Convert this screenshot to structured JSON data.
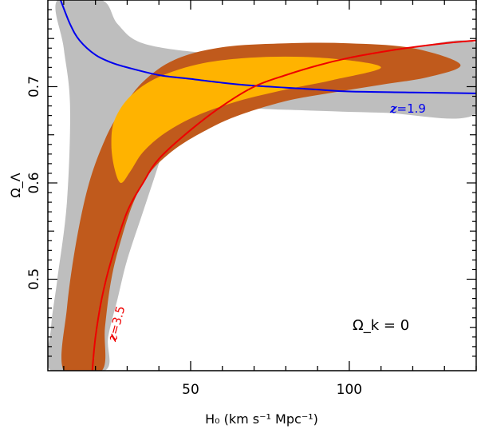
{
  "chart_data": {
    "type": "contour",
    "xlabel": "H₀ (km s⁻¹ Mpc⁻¹)",
    "ylabel": "Ω_Λ",
    "xlim": [
      5,
      140
    ],
    "ylim": [
      0.405,
      0.79
    ],
    "x_ticks": [
      50,
      100
    ],
    "y_ticks": [
      0.5,
      0.6,
      0.7
    ],
    "grid": false,
    "annotation": "Ω_k = 0",
    "colors": {
      "gray_band": "#bebebe",
      "outer_contour": "#c05a1c",
      "inner_contour": "#ffb300",
      "curve_z19": "#0000ee",
      "curve_z35": "#ee0000"
    },
    "curves": [
      {
        "label_var": "z",
        "label_val": "=1.9",
        "color": "#0000ee",
        "points": [
          [
            9,
            0.79
          ],
          [
            12,
            0.765
          ],
          [
            15,
            0.748
          ],
          [
            20,
            0.733
          ],
          [
            25,
            0.725
          ],
          [
            30,
            0.72
          ],
          [
            40,
            0.712
          ],
          [
            50,
            0.708
          ],
          [
            60,
            0.704
          ],
          [
            70,
            0.701
          ],
          [
            80,
            0.699
          ],
          [
            90,
            0.697
          ],
          [
            100,
            0.695
          ],
          [
            120,
            0.694
          ],
          [
            140,
            0.693
          ]
        ]
      },
      {
        "label_var": "z",
        "label_val": "=3.5",
        "color": "#ee0000",
        "points": [
          [
            19,
            0.405
          ],
          [
            20,
            0.44
          ],
          [
            22,
            0.48
          ],
          [
            25,
            0.52
          ],
          [
            30,
            0.57
          ],
          [
            35,
            0.6
          ],
          [
            40,
            0.625
          ],
          [
            50,
            0.655
          ],
          [
            60,
            0.68
          ],
          [
            70,
            0.7
          ],
          [
            80,
            0.712
          ],
          [
            90,
            0.722
          ],
          [
            100,
            0.73
          ],
          [
            110,
            0.736
          ],
          [
            120,
            0.741
          ],
          [
            130,
            0.745
          ],
          [
            140,
            0.748
          ]
        ]
      }
    ],
    "regions": [
      {
        "level": "outer",
        "color": "#c05a1c",
        "points": [
          [
            10,
            0.405
          ],
          [
            11,
            0.47
          ],
          [
            14,
            0.54
          ],
          [
            18,
            0.6
          ],
          [
            23,
            0.645
          ],
          [
            28,
            0.675
          ],
          [
            35,
            0.705
          ],
          [
            45,
            0.728
          ],
          [
            60,
            0.741
          ],
          [
            80,
            0.745
          ],
          [
            100,
            0.745
          ],
          [
            120,
            0.74
          ],
          [
            135,
            0.723
          ],
          [
            125,
            0.71
          ],
          [
            110,
            0.702
          ],
          [
            95,
            0.694
          ],
          [
            80,
            0.685
          ],
          [
            65,
            0.67
          ],
          [
            55,
            0.655
          ],
          [
            45,
            0.635
          ],
          [
            37,
            0.61
          ],
          [
            32,
            0.58
          ],
          [
            28,
            0.54
          ],
          [
            25,
            0.5
          ],
          [
            23,
            0.45
          ],
          [
            22,
            0.405
          ]
        ]
      },
      {
        "level": "inner",
        "color": "#ffb300",
        "points": [
          [
            28,
            0.6
          ],
          [
            26,
            0.615
          ],
          [
            25,
            0.64
          ],
          [
            26,
            0.665
          ],
          [
            31,
            0.69
          ],
          [
            40,
            0.71
          ],
          [
            55,
            0.725
          ],
          [
            75,
            0.731
          ],
          [
            95,
            0.729
          ],
          [
            110,
            0.72
          ],
          [
            95,
            0.707
          ],
          [
            80,
            0.697
          ],
          [
            65,
            0.685
          ],
          [
            52,
            0.67
          ],
          [
            42,
            0.652
          ],
          [
            35,
            0.632
          ],
          [
            31,
            0.612
          ]
        ]
      }
    ],
    "bands": [
      {
        "color": "#bebebe",
        "points": [
          [
            8,
            0.79
          ],
          [
            22,
            0.79
          ],
          [
            27,
            0.765
          ],
          [
            35,
            0.745
          ],
          [
            55,
            0.735
          ],
          [
            80,
            0.732
          ],
          [
            110,
            0.735
          ],
          [
            140,
            0.745
          ],
          [
            140,
            0.672
          ],
          [
            110,
            0.673
          ],
          [
            80,
            0.676
          ],
          [
            60,
            0.678
          ],
          [
            45,
            0.672
          ],
          [
            40,
            0.62
          ],
          [
            35,
            0.57
          ],
          [
            30,
            0.52
          ],
          [
            27,
            0.48
          ],
          [
            24,
            0.44
          ],
          [
            23,
            0.405
          ],
          [
            6,
            0.405
          ],
          [
            6,
            0.45
          ],
          [
            8,
            0.5
          ],
          [
            11,
            0.58
          ],
          [
            12,
            0.68
          ],
          [
            10,
            0.74
          ]
        ]
      }
    ]
  }
}
